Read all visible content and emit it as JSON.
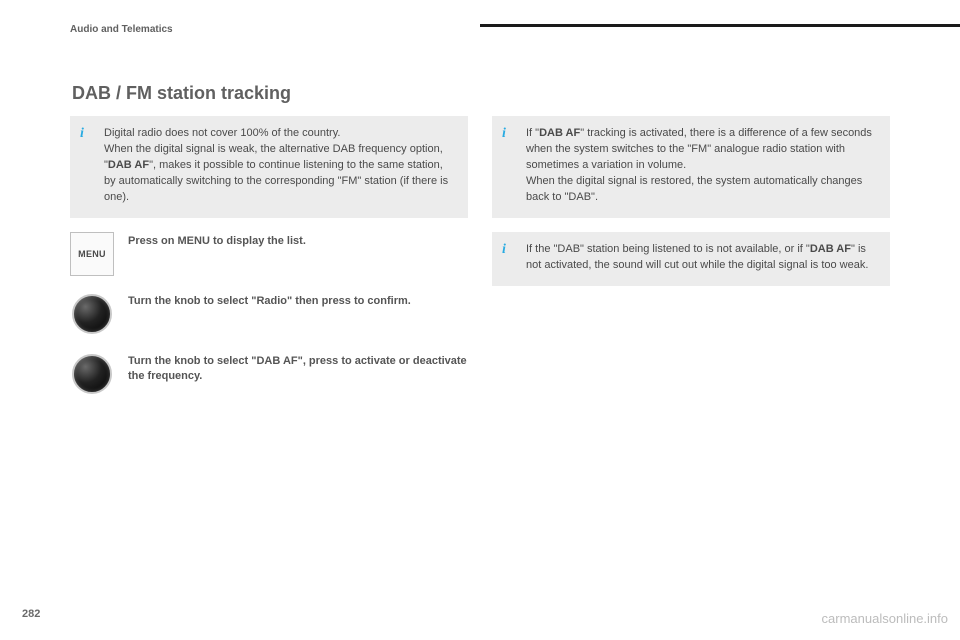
{
  "header": {
    "section": "Audio and Telematics"
  },
  "title": "DAB / FM station tracking",
  "page_number": "282",
  "watermark": "carmanualsonline.info",
  "left": {
    "info1": {
      "p1a": "Digital radio does not cover 100% of the country.",
      "p1b": "When the digital signal is weak, the alternative DAB frequency option, \"",
      "p1bold": "DAB AF",
      "p1c": "\", makes it possible to continue listening to the same station, by automatically switching to the corresponding \"FM\" station (if there is one)."
    },
    "step1": {
      "icon_label": "MENU",
      "text": "Press on MENU to display the list."
    },
    "step2": {
      "text": "Turn the knob to select \"Radio\" then press to confirm."
    },
    "step3": {
      "text": "Turn the knob to select \"DAB AF\", press to activate or deactivate the frequency."
    }
  },
  "right": {
    "info2": {
      "p1a": "If \"",
      "p1bold": "DAB AF",
      "p1b": "\" tracking is activated, there is a difference of a few seconds when the system switches to the \"FM\" analogue radio station with sometimes a variation in volume.",
      "p2": "When the digital signal is restored, the system automatically changes back to \"DAB\"."
    },
    "info3": {
      "p1a": "If the \"DAB\" station being listened to is not available, or if \"",
      "p1bold": "DAB AF",
      "p1b": "\" is not activated, the sound will cut out while the digital signal is too weak."
    }
  }
}
